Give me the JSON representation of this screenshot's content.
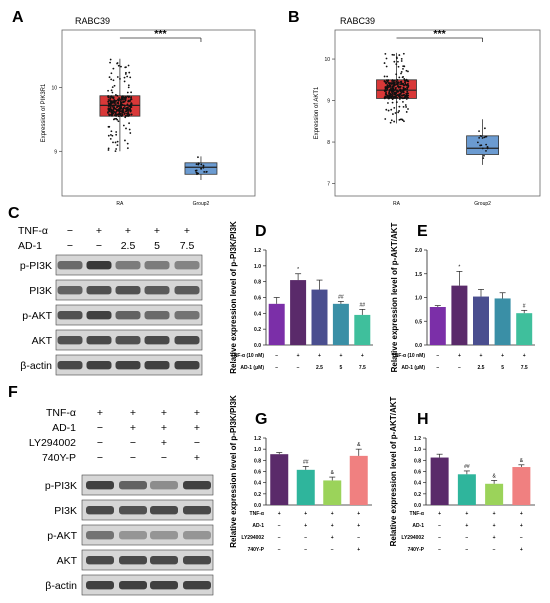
{
  "panels": {
    "A": "A",
    "B": "B",
    "C": "C",
    "D": "D",
    "E": "E",
    "F": "F",
    "G": "G",
    "H": "H"
  },
  "boxplots": [
    {
      "panel": "A",
      "title": "RABC39",
      "ylabel": "Expression of PIK3R1",
      "sig": "***",
      "categories": [
        "RA",
        "Group2"
      ],
      "ylim": [
        8.3,
        10.9
      ],
      "yticks": [
        9,
        10
      ],
      "colors": [
        "#d93838",
        "#6b9bd1"
      ],
      "boxes": [
        {
          "name": "RA",
          "q1": 9.55,
          "median": 9.72,
          "q3": 9.87,
          "min": 9.0,
          "max": 10.45
        },
        {
          "name": "Group2",
          "q1": 8.64,
          "median": 8.75,
          "q3": 8.82,
          "min": 8.55,
          "max": 8.92
        }
      ]
    },
    {
      "panel": "B",
      "title": "RABC39",
      "ylabel": "Expression of AKT1",
      "sig": "***",
      "categories": [
        "RA",
        "Group2"
      ],
      "ylim": [
        6.7,
        10.7
      ],
      "yticks": [
        7,
        8,
        9,
        10
      ],
      "colors": [
        "#d93838",
        "#6b9bd1"
      ],
      "boxes": [
        {
          "name": "RA",
          "q1": 9.05,
          "median": 9.25,
          "q3": 9.5,
          "min": 8.45,
          "max": 10.15
        },
        {
          "name": "Group2",
          "q1": 7.7,
          "median": 7.85,
          "q3": 8.15,
          "min": 7.45,
          "max": 8.55
        }
      ]
    }
  ],
  "blotC": {
    "treat_rows": [
      {
        "label": "TNF-α",
        "cells": [
          "−",
          "+",
          "+",
          "+",
          "+"
        ]
      },
      {
        "label": "AD-1",
        "cells": [
          "−",
          "−",
          "2.5",
          "5",
          "7.5"
        ]
      }
    ],
    "bands": [
      "p-PI3K",
      "PI3K",
      "p-AKT",
      "AKT",
      "β-actin"
    ]
  },
  "blotF": {
    "treat_rows": [
      {
        "label": "TNF-α",
        "cells": [
          "+",
          "+",
          "+",
          "+"
        ]
      },
      {
        "label": "AD-1",
        "cells": [
          "−",
          "+",
          "+",
          "+"
        ]
      },
      {
        "label": "LY294002",
        "cells": [
          "−",
          "−",
          "+",
          "−"
        ]
      },
      {
        "label": "740Y-P",
        "cells": [
          "−",
          "−",
          "−",
          "+"
        ]
      }
    ],
    "bands": [
      "p-PI3K",
      "PI3K",
      "p-AKT",
      "AKT",
      "β-actin"
    ]
  },
  "chart_data": [
    {
      "panel": "D",
      "type": "bar",
      "ylabel": "Relative expression level of p-PI3K/PI3K",
      "ylim": [
        0,
        1.2
      ],
      "yticks": [
        "0.0",
        "0.2",
        "0.4",
        "0.6",
        "0.8",
        "1.0",
        "1.2"
      ],
      "values": [
        0.52,
        0.82,
        0.7,
        0.52,
        0.38
      ],
      "errors": [
        0.08,
        0.08,
        0.12,
        0.03,
        0.07
      ],
      "annotations": [
        "",
        "*",
        "",
        "##",
        "##"
      ],
      "colors": [
        "#7b2fa8",
        "#5a2a6a",
        "#4a4e8f",
        "#3a8fa6",
        "#3fbf9c"
      ],
      "conditions": [
        {
          "label": "TNF-α (10 nM)",
          "cells": [
            "−",
            "+",
            "+",
            "+",
            "+"
          ]
        },
        {
          "label": "AD-1 (μM)",
          "cells": [
            "−",
            "−",
            "2.5",
            "5",
            "7.5"
          ]
        }
      ]
    },
    {
      "panel": "E",
      "type": "bar",
      "ylabel": "Relative expression level of p-AKT/AKT",
      "ylim": [
        0,
        2.0
      ],
      "yticks": [
        "0.0",
        "0.5",
        "1.0",
        "1.5",
        "2.0"
      ],
      "values": [
        0.8,
        1.25,
        1.02,
        0.98,
        0.67
      ],
      "errors": [
        0.03,
        0.3,
        0.15,
        0.12,
        0.06
      ],
      "annotations": [
        "",
        "*",
        "",
        "",
        "#"
      ],
      "colors": [
        "#7b2fa8",
        "#5a2a6a",
        "#4a4e8f",
        "#3a8fa6",
        "#3fbf9c"
      ],
      "conditions": [
        {
          "label": "TNF-α (10 nM)",
          "cells": [
            "−",
            "+",
            "+",
            "+",
            "+"
          ]
        },
        {
          "label": "AD-1 (μM)",
          "cells": [
            "−",
            "−",
            "2.5",
            "5",
            "7.5"
          ]
        }
      ]
    },
    {
      "panel": "G",
      "type": "bar",
      "ylabel": "Relative expression level of p-PI3K/PI3K",
      "ylim": [
        0,
        1.2
      ],
      "yticks": [
        "0.0",
        "0.2",
        "0.4",
        "0.6",
        "0.8",
        "1.0",
        "1.2"
      ],
      "values": [
        0.91,
        0.63,
        0.44,
        0.88
      ],
      "errors": [
        0.03,
        0.06,
        0.06,
        0.12
      ],
      "annotations": [
        "",
        "##",
        "&",
        "&"
      ],
      "colors": [
        "#5a2a6a",
        "#2fb59c",
        "#9bd35a",
        "#f08080"
      ],
      "conditions": [
        {
          "label": "TNF-α",
          "cells": [
            "+",
            "+",
            "+",
            "+"
          ]
        },
        {
          "label": "AD-1",
          "cells": [
            "−",
            "+",
            "+",
            "+"
          ]
        },
        {
          "label": "LY294002",
          "cells": [
            "−",
            "−",
            "+",
            "−"
          ]
        },
        {
          "label": "740Y-P",
          "cells": [
            "−",
            "−",
            "−",
            "+"
          ]
        }
      ]
    },
    {
      "panel": "H",
      "type": "bar",
      "ylabel": "Relative expression level of p-AKT/AKT",
      "ylim": [
        0,
        1.2
      ],
      "yticks": [
        "0.0",
        "0.2",
        "0.4",
        "0.6",
        "0.8",
        "1.0",
        "1.2"
      ],
      "values": [
        0.85,
        0.55,
        0.38,
        0.68
      ],
      "errors": [
        0.06,
        0.06,
        0.06,
        0.04
      ],
      "annotations": [
        "",
        "##",
        "&",
        "&"
      ],
      "colors": [
        "#5a2a6a",
        "#2fb59c",
        "#9bd35a",
        "#f08080"
      ],
      "conditions": [
        {
          "label": "TNF-α",
          "cells": [
            "+",
            "+",
            "+",
            "+"
          ]
        },
        {
          "label": "AD-1",
          "cells": [
            "−",
            "+",
            "+",
            "+"
          ]
        },
        {
          "label": "LY294002",
          "cells": [
            "−",
            "−",
            "+",
            "−"
          ]
        },
        {
          "label": "740Y-P",
          "cells": [
            "−",
            "−",
            "−",
            "+"
          ]
        }
      ]
    }
  ]
}
